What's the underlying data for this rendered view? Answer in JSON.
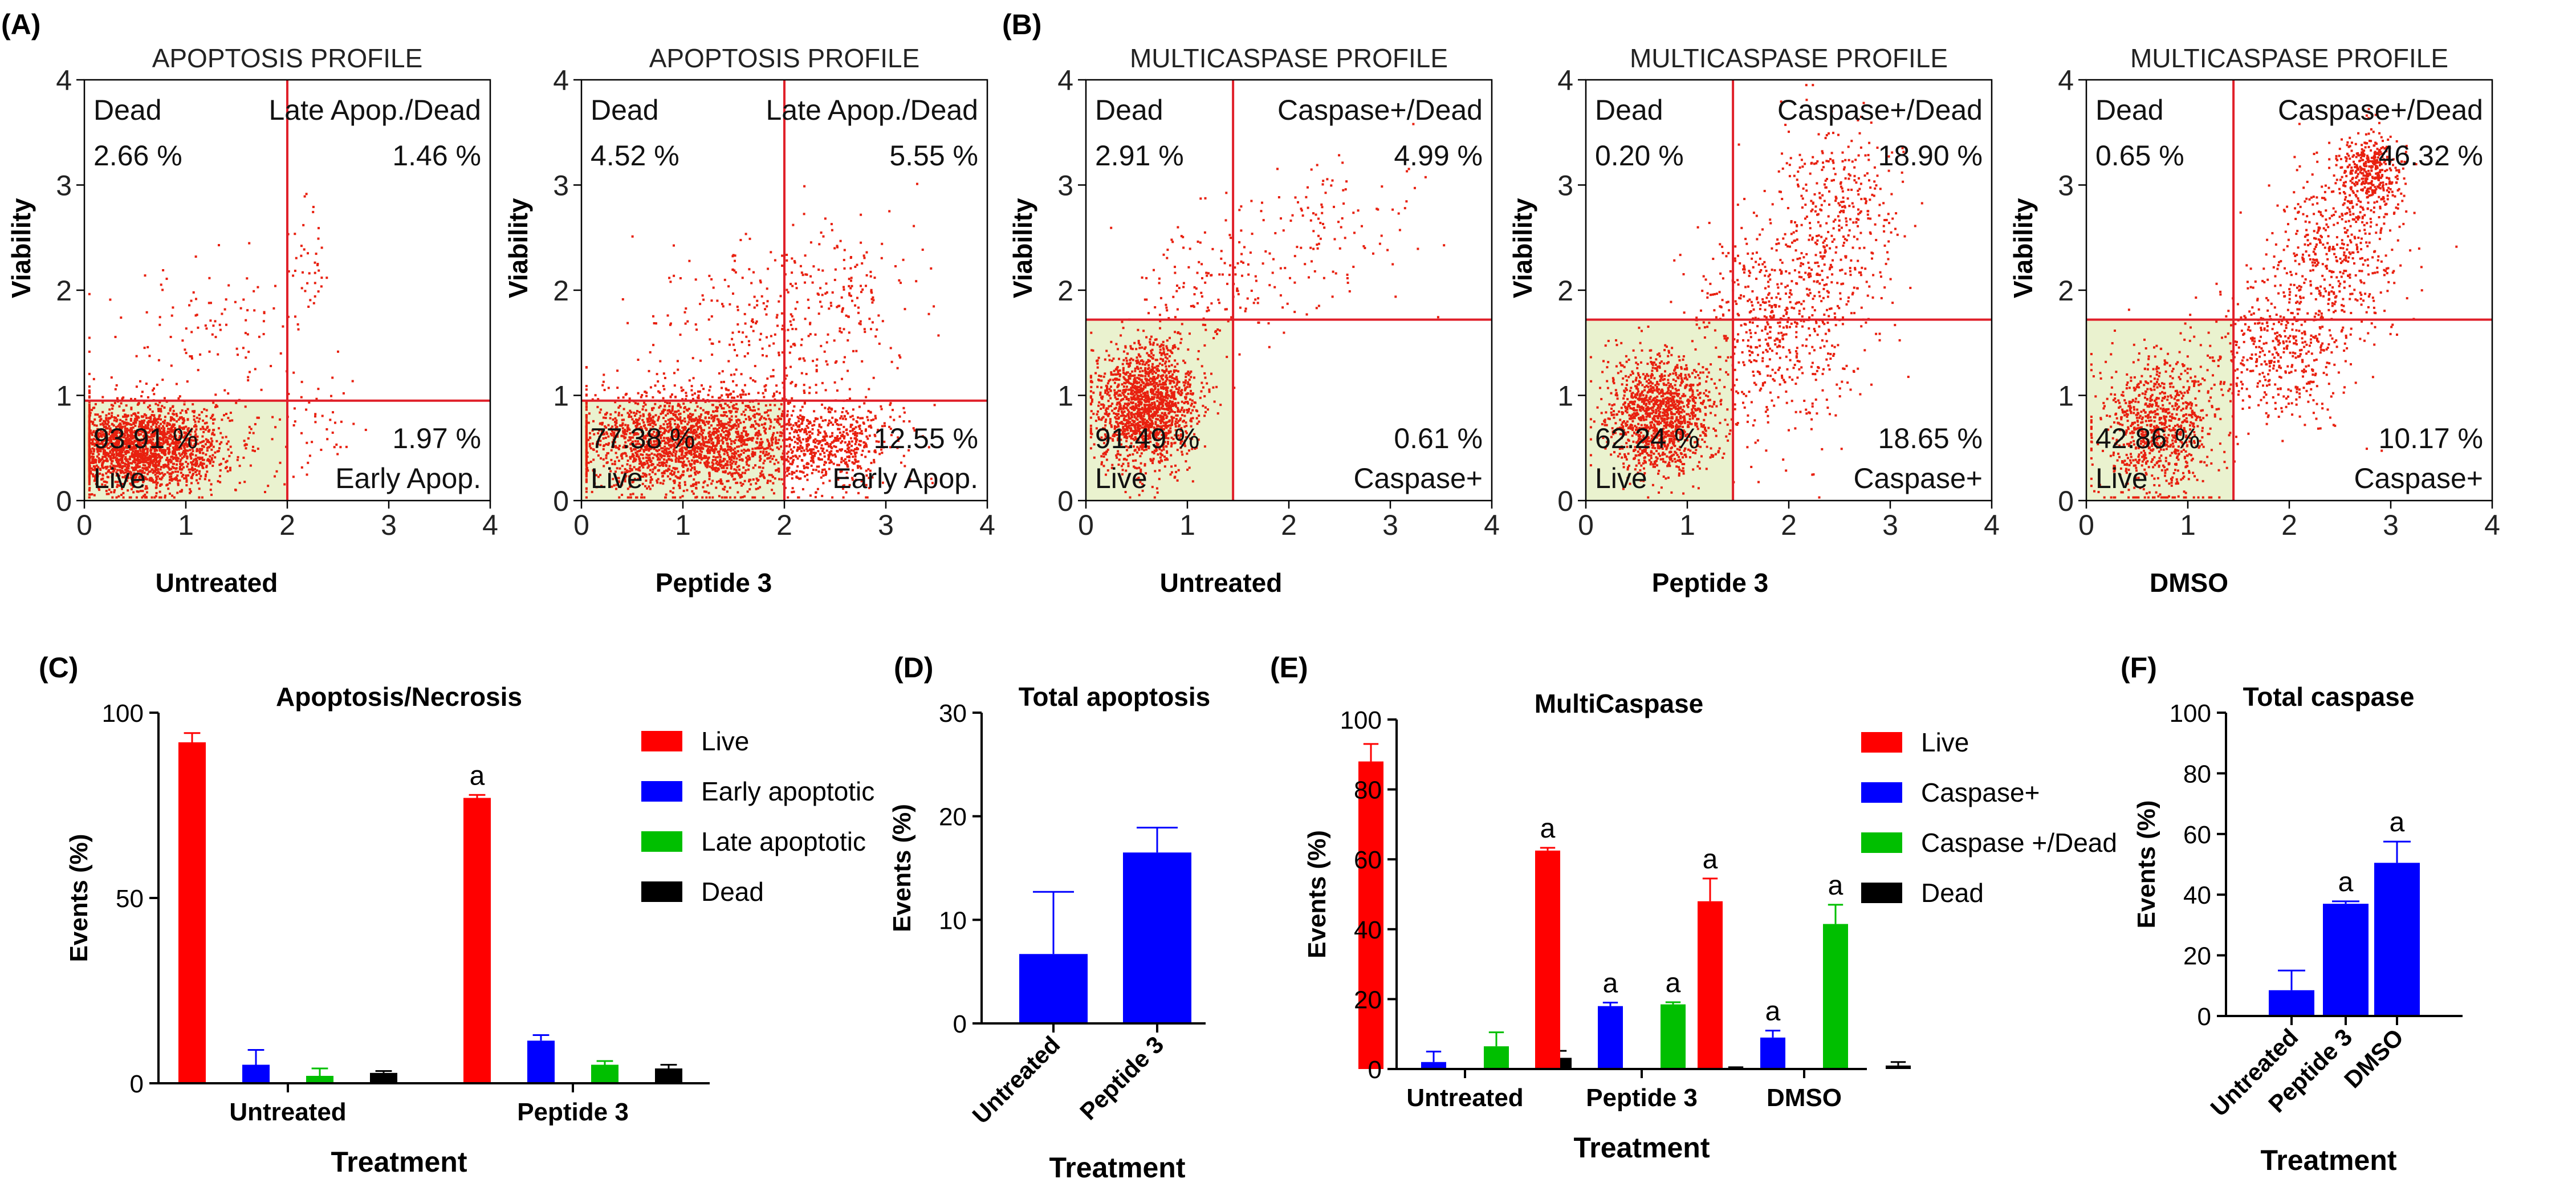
{
  "panel_letters": [
    "(A)",
    "(B)",
    "(C)",
    "(D)",
    "(E)",
    "(F)"
  ],
  "colors": {
    "dot": "#e8200f",
    "line": "#e0202a",
    "live_fill": "#eaf2cf",
    "red": "#ff0000",
    "blue": "#0000ff",
    "green": "#00bf00",
    "black": "#000000"
  },
  "chart_data": [
    {
      "type": "scatter",
      "title": "APOPTOSIS PROFILE",
      "xlabel": "Untreated",
      "ylabel": "Viability",
      "xlim": [
        0,
        4
      ],
      "ylim": [
        0,
        4
      ],
      "xticks": [
        "0",
        "1",
        "2",
        "3",
        "4"
      ],
      "yticks": [
        "0",
        "1",
        "2",
        "3",
        "4"
      ],
      "gates": {
        "x": 2.0,
        "y": 0.95
      },
      "quadrants": {
        "tl_label": "Dead",
        "tl_value": "2.66 %",
        "tr_label": "Late Apop./Dead",
        "tr_value": "1.46 %",
        "bl_label": "Live",
        "bl_value": "93.91 %",
        "br_label": "Early Apop.",
        "br_value": "1.97 %"
      },
      "clusters": [
        {
          "n": 2200,
          "cx": 0.55,
          "cy": 0.5,
          "sx": 0.42,
          "sy": 0.2
        },
        {
          "n": 120,
          "cx": 1.2,
          "cy": 1.5,
          "sx": 0.55,
          "sy": 0.4
        },
        {
          "n": 40,
          "cx": 2.2,
          "cy": 2.2,
          "sx": 0.12,
          "sy": 0.3
        },
        {
          "n": 50,
          "cx": 2.3,
          "cy": 0.7,
          "sx": 0.3,
          "sy": 0.25
        }
      ]
    },
    {
      "type": "scatter",
      "title": "APOPTOSIS PROFILE",
      "xlabel": "Peptide 3",
      "ylabel": "Viability",
      "xlim": [
        0,
        4
      ],
      "ylim": [
        0,
        4
      ],
      "xticks": [
        "0",
        "1",
        "2",
        "3",
        "4"
      ],
      "yticks": [
        "0",
        "1",
        "2",
        "3",
        "4"
      ],
      "gates": {
        "x": 2.0,
        "y": 0.95
      },
      "quadrants": {
        "tl_label": "Dead",
        "tl_value": "4.52 %",
        "tr_label": "Late Apop./Dead",
        "tr_value": "5.55 %",
        "bl_label": "Live",
        "bl_value": "77.38 %",
        "br_label": "Early Apop.",
        "br_value": "12.55 %"
      },
      "clusters": [
        {
          "n": 2200,
          "cx": 1.1,
          "cy": 0.55,
          "sx": 0.65,
          "sy": 0.25
        },
        {
          "n": 450,
          "cx": 2.5,
          "cy": 0.55,
          "sx": 0.3,
          "sy": 0.2
        },
        {
          "n": 250,
          "cx": 1.7,
          "cy": 1.6,
          "sx": 0.55,
          "sy": 0.45
        },
        {
          "n": 150,
          "cx": 2.6,
          "cy": 1.9,
          "sx": 0.35,
          "sy": 0.4
        }
      ]
    },
    {
      "type": "scatter",
      "title": "MULTICASPASE PROFILE",
      "xlabel": "Untreated",
      "ylabel": "Viability",
      "xlim": [
        0,
        4
      ],
      "ylim": [
        0,
        4
      ],
      "xticks": [
        "0",
        "1",
        "2",
        "3",
        "4"
      ],
      "yticks": [
        "0",
        "1",
        "2",
        "3",
        "4"
      ],
      "gates": {
        "x": 1.45,
        "y": 1.72
      },
      "quadrants": {
        "tl_label": "Dead",
        "tl_value": "2.91 %",
        "tr_label": "Caspase+/Dead",
        "tr_value": "4.99 %",
        "bl_label": "Live",
        "bl_value": "91.49 %",
        "br_label": "Caspase+",
        "br_value": "0.61 %"
      },
      "clusters": [
        {
          "n": 1600,
          "cx": 0.6,
          "cy": 0.9,
          "sx": 0.25,
          "sy": 0.3
        },
        {
          "n": 130,
          "cx": 1.2,
          "cy": 2.0,
          "sx": 0.4,
          "sy": 0.35
        },
        {
          "n": 130,
          "cx": 2.3,
          "cy": 2.5,
          "sx": 0.5,
          "sy": 0.4
        }
      ]
    },
    {
      "type": "scatter",
      "title": "MULTICASPASE PROFILE",
      "xlabel": "Peptide 3",
      "ylabel": "Viability",
      "xlim": [
        0,
        4
      ],
      "ylim": [
        0,
        4
      ],
      "xticks": [
        "0",
        "1",
        "2",
        "3",
        "4"
      ],
      "yticks": [
        "0",
        "1",
        "2",
        "3",
        "4"
      ],
      "gates": {
        "x": 1.45,
        "y": 1.72
      },
      "quadrants": {
        "tl_label": "Dead",
        "tl_value": "0.20 %",
        "tr_label": "Caspase+/Dead",
        "tr_value": "18.90 %",
        "bl_label": "Live",
        "bl_value": "62.24 %",
        "br_label": "Caspase+",
        "br_value": "18.65 %"
      },
      "clusters": [
        {
          "n": 1300,
          "cx": 0.75,
          "cy": 0.8,
          "sx": 0.28,
          "sy": 0.28
        },
        {
          "n": 600,
          "cx": 1.9,
          "cy": 1.7,
          "sx": 0.4,
          "sy": 0.55
        },
        {
          "n": 350,
          "cx": 2.5,
          "cy": 2.7,
          "sx": 0.3,
          "sy": 0.45
        }
      ]
    },
    {
      "type": "scatter",
      "title": "MULTICASPASE PROFILE",
      "xlabel": "DMSO",
      "ylabel": "Viability",
      "xlim": [
        0,
        4
      ],
      "ylim": [
        0,
        4
      ],
      "xticks": [
        "0",
        "1",
        "2",
        "3",
        "4"
      ],
      "yticks": [
        "0",
        "1",
        "2",
        "3",
        "4"
      ],
      "gates": {
        "x": 1.45,
        "y": 1.72
      },
      "quadrants": {
        "tl_label": "Dead",
        "tl_value": "0.65 %",
        "tr_label": "Caspase+/Dead",
        "tr_value": "46.32 %",
        "bl_label": "Live",
        "bl_value": "42.86 %",
        "br_label": "Caspase+",
        "br_value": "10.17 %"
      },
      "clusters": [
        {
          "n": 900,
          "cx": 0.7,
          "cy": 0.7,
          "sx": 0.3,
          "sy": 0.35
        },
        {
          "n": 450,
          "cx": 1.9,
          "cy": 1.4,
          "sx": 0.35,
          "sy": 0.35
        },
        {
          "n": 500,
          "cx": 2.5,
          "cy": 2.4,
          "sx": 0.3,
          "sy": 0.45
        },
        {
          "n": 350,
          "cx": 2.8,
          "cy": 3.15,
          "sx": 0.15,
          "sy": 0.18
        }
      ]
    },
    {
      "type": "bar",
      "title": "Apoptosis/Necrosis",
      "xlabel": "Treatment",
      "ylabel": "Events (%)",
      "ylim": [
        0,
        100
      ],
      "yticks": [
        0,
        50,
        100
      ],
      "categories": [
        "Untreated",
        "Peptide 3"
      ],
      "series": [
        {
          "name": "Live",
          "color": "#ff0000",
          "values": [
            92,
            77
          ],
          "errors": [
            2.5,
            0.8
          ],
          "annotations": [
            "",
            "a"
          ]
        },
        {
          "name": "Early apoptotic",
          "color": "#0000ff",
          "values": [
            5,
            11.5
          ],
          "errors": [
            4.0,
            1.5
          ],
          "annotations": [
            "",
            ""
          ]
        },
        {
          "name": "Late apoptotic",
          "color": "#00bf00",
          "values": [
            2,
            5
          ],
          "errors": [
            2.0,
            1.0
          ],
          "annotations": [
            "",
            ""
          ]
        },
        {
          "name": "Dead",
          "color": "#000000",
          "values": [
            2.8,
            4
          ],
          "errors": [
            0.5,
            1.0
          ],
          "annotations": [
            "",
            ""
          ]
        }
      ],
      "legend": "right"
    },
    {
      "type": "bar",
      "title": "Total apoptosis",
      "xlabel": "Treatment",
      "ylabel": "Events (%)",
      "ylim": [
        0,
        30
      ],
      "yticks": [
        0,
        10,
        20,
        30
      ],
      "categories": [
        "Untreated",
        "Peptide 3"
      ],
      "series": [
        {
          "name": "",
          "color": "#0000ff",
          "values": [
            6.7,
            16.5
          ],
          "errors": [
            6.0,
            2.4
          ],
          "annotations": [
            "",
            ""
          ]
        }
      ]
    },
    {
      "type": "bar",
      "title": "MultiCaspase",
      "xlabel": "Treatment",
      "ylabel": "Events (%)",
      "ylim": [
        0,
        100
      ],
      "yticks": [
        0,
        20,
        40,
        60,
        80,
        100
      ],
      "categories": [
        "Untreated",
        "Peptide 3",
        "DMSO"
      ],
      "series": [
        {
          "name": "Live",
          "color": "#ff0000",
          "values": [
            88,
            62.5,
            48
          ],
          "errors": [
            5.0,
            0.8,
            6.5
          ],
          "annotations": [
            "",
            "a",
            "a"
          ]
        },
        {
          "name": "Caspase+",
          "color": "#0000ff",
          "values": [
            2,
            18,
            9
          ],
          "errors": [
            3.0,
            1.0,
            2.0
          ],
          "annotations": [
            "",
            "a",
            "a"
          ]
        },
        {
          "name": "Caspase +/Dead",
          "color": "#00bf00",
          "values": [
            6.5,
            18.5,
            41.5
          ],
          "errors": [
            4.0,
            0.6,
            5.5
          ],
          "annotations": [
            "",
            "a",
            "a"
          ]
        },
        {
          "name": "Dead",
          "color": "#000000",
          "values": [
            3.2,
            0.3,
            1.0
          ],
          "errors": [
            2.0,
            0.2,
            1.0
          ],
          "annotations": [
            "",
            "",
            ""
          ]
        }
      ],
      "legend": "right"
    },
    {
      "type": "bar",
      "title": "Total caspase",
      "xlabel": "Treatment",
      "ylabel": "Events (%)",
      "ylim": [
        0,
        100
      ],
      "yticks": [
        0,
        20,
        40,
        60,
        80,
        100
      ],
      "categories": [
        "Untreated",
        "Peptide 3",
        "DMSO"
      ],
      "series": [
        {
          "name": "",
          "color": "#0000ff",
          "values": [
            8.5,
            37,
            50.5
          ],
          "errors": [
            6.5,
            0.8,
            7.0
          ],
          "annotations": [
            "",
            "a",
            "a"
          ]
        }
      ]
    }
  ]
}
